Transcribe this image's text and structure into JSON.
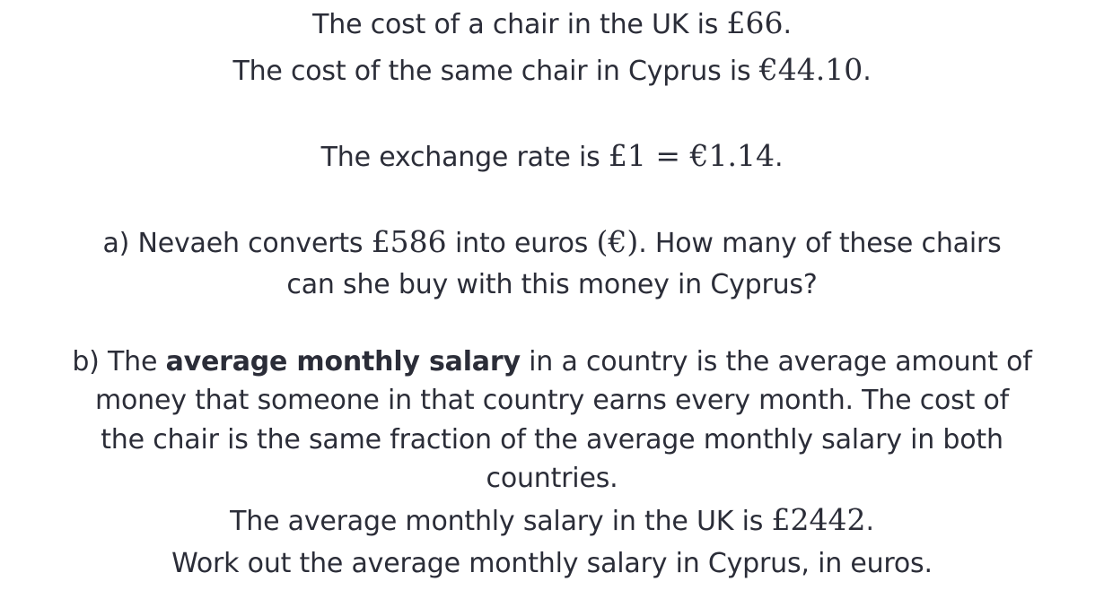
{
  "intro": {
    "uk_prefix": "The cost of a chair in the UK is",
    "uk_price": "£66",
    "uk_suffix": ".",
    "cy_prefix": "The cost of the same chair in Cyprus is",
    "cy_price": "€44.10",
    "cy_suffix": ".",
    "rate_prefix": "The exchange rate is",
    "rate_value": "£1 = €1.14",
    "rate_suffix": "."
  },
  "part_a": {
    "line1_prefix": "a) Nevaeh converts",
    "amount": "£586",
    "line1_mid": "into euros",
    "currency": "(€)",
    "line1_suffix": ". How many of these chairs",
    "line2": "can she buy with this money in Cyprus?"
  },
  "part_b": {
    "line1_prefix": "b) The",
    "bold_term": "average monthly salary",
    "line1_suffix": "in a country is the average amount of",
    "line2": "money that someone in that country earns every month. The cost of",
    "line3": "the chair is the same fraction of the average monthly salary in both",
    "line4": "countries.",
    "line5_prefix": "The average monthly salary in the UK is",
    "uk_salary": "£2442",
    "line5_suffix": ".",
    "line6": "Work out the average monthly salary in Cyprus, in euros."
  }
}
